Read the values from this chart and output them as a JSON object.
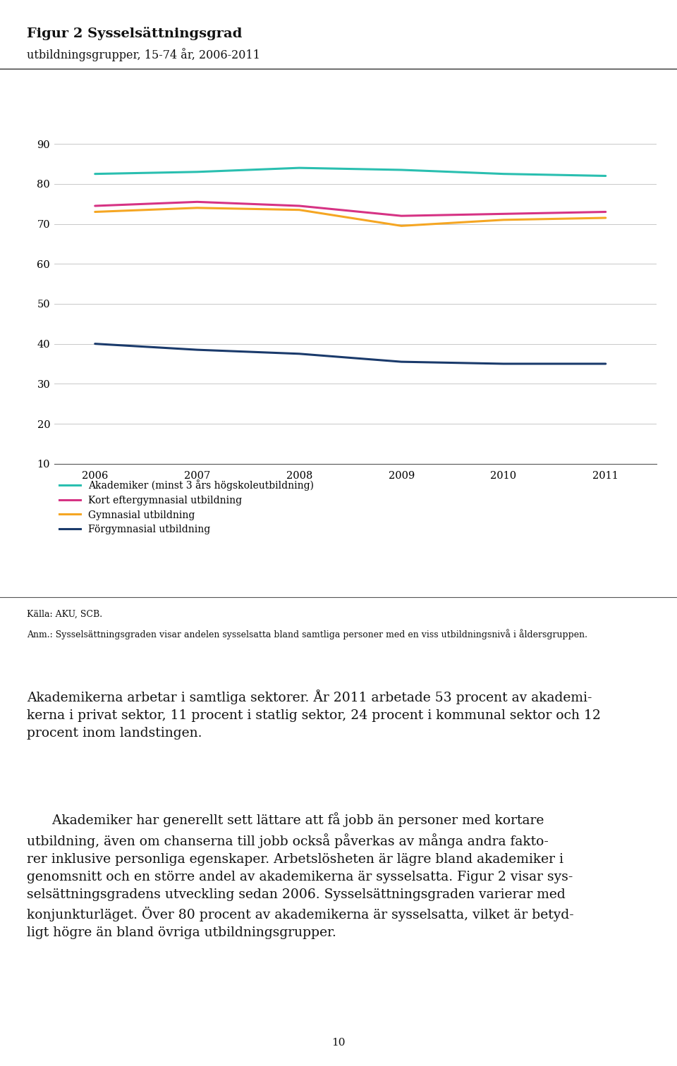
{
  "title_bold": "Figur 2 Sysselsättningsgrad",
  "title_sub": "utbildningsgrupper, 15-74 år, 2006-2011",
  "years": [
    2006,
    2007,
    2008,
    2009,
    2010,
    2011
  ],
  "series": [
    {
      "label": "Akademiker (minst 3 års högskoleutbildning)",
      "color": "#2abfb0",
      "values": [
        82.5,
        83.0,
        84.0,
        83.5,
        82.5,
        82.0
      ]
    },
    {
      "label": "Kort eftergymnasial utbildning",
      "color": "#d63384",
      "values": [
        74.5,
        75.5,
        74.5,
        72.0,
        72.5,
        73.0
      ]
    },
    {
      "label": "Gymnasial utbildning",
      "color": "#f5a623",
      "values": [
        73.0,
        74.0,
        73.5,
        69.5,
        71.0,
        71.5
      ]
    },
    {
      "label": "Förgymnasial utbildning",
      "color": "#1a3a6b",
      "values": [
        40.0,
        38.5,
        37.5,
        35.5,
        35.0,
        35.0
      ]
    }
  ],
  "ylim": [
    10,
    90
  ],
  "yticks": [
    10,
    20,
    30,
    40,
    50,
    60,
    70,
    80,
    90
  ],
  "source_line1": "Källa: AKU, SCB.",
  "source_line2": "Anm.: Sysselsättningsgraden visar andelen sysselsatta bland samtliga personer med en viss utbildningsnivå i åldersgruppen.",
  "p1": "Akademikerna arbetar i samtliga sektorer. År 2011 arbetade 53 procent av akademi-kerna i privat sektor, 11 procent i statlig sektor, 24 procent i kommunal sektor och 12 procent inom landstingen.",
  "p2": "Akademiker har generellt sett lättare att få jobb än personer med kortare utbildning, även om chanserna till jobb också påverkas av många andra faktorer inklusive personliga egenskaper. Arbetslösheten är lägre bland akademiker i genomsnitt och en större andel av akademikerna är sysselsatta. Figur 2 visar sysselsättningsgradens utveckling sedan 2006. Sysselsättningsgraden varierar med konjunkturläget. Över 80 procent av akademikerna är sysselsatta, vilket är betydligt högre än bland övriga utbildningsgrupper.",
  "page_number": "10",
  "background_color": "#ffffff",
  "grid_color": "#c8c8c8",
  "line_width": 2.2
}
